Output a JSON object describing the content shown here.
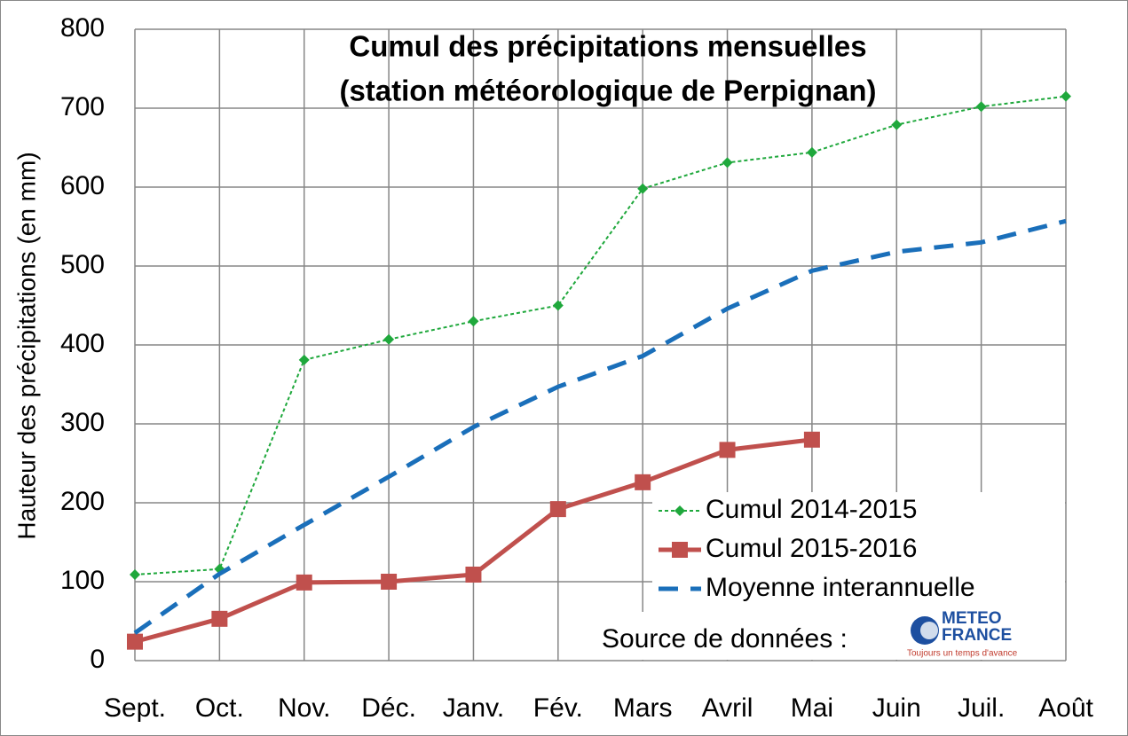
{
  "chart_data": {
    "type": "line",
    "title": "Cumul des précipitations mensuelles",
    "subtitle": "(station météorologique de Perpignan)",
    "y_label": "Hauteur des précipitations (en mm)",
    "categories": [
      "Sept.",
      "Oct.",
      "Nov.",
      "Déc.",
      "Janv.",
      "Fév.",
      "Mars",
      "Avril",
      "Mai",
      "Juin",
      "Juil.",
      "Août"
    ],
    "series": [
      {
        "name": "Cumul 2014-2015",
        "color": "#1fa83c",
        "style": "dotted",
        "marker": "diamond",
        "values": [
          109,
          116,
          381,
          407,
          430,
          450,
          598,
          631,
          644,
          679,
          702,
          715
        ]
      },
      {
        "name": "Cumul 2015-2016",
        "color": "#c0504d",
        "style": "solid",
        "marker": "square",
        "values": [
          24,
          53,
          99,
          100,
          109,
          192,
          226,
          267,
          280,
          null,
          null,
          null
        ]
      },
      {
        "name": "Moyenne interannuelle",
        "color": "#1a6fba",
        "style": "dashed",
        "marker": null,
        "values": [
          35,
          110,
          172,
          233,
          296,
          347,
          386,
          446,
          494,
          518,
          530,
          557
        ]
      }
    ],
    "ylim": [
      0,
      800
    ],
    "yticks": [
      0,
      100,
      200,
      300,
      400,
      500,
      600,
      700,
      800
    ],
    "grid": true,
    "legend": "lower right",
    "source": {
      "text": "Source de données :",
      "logo": [
        "METEO",
        "FRANCE"
      ],
      "tagline": "Toujours un temps d'avance"
    }
  }
}
